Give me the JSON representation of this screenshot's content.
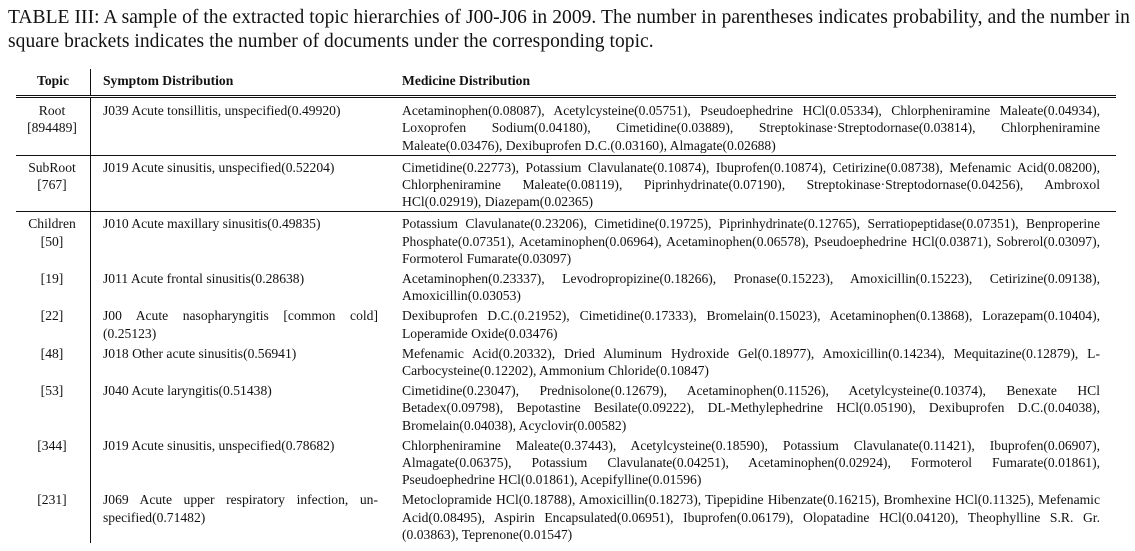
{
  "caption": "TABLE III: A sample of the extracted topic hierarchies of J00-J06 in 2009. The number in parentheses indicates probability, and the number in square brackets indicates the number of documents under the corresponding topic.",
  "headers": {
    "topic": "Topic",
    "symptom": "Symptom Distribution",
    "medicine": "Medicine Distribution"
  },
  "rows": [
    {
      "topic_label": "Root",
      "topic_count": "[894489]",
      "symptom": "J039 Acute tonsillitis, unspecified(0.49920)",
      "medicine": "Acetaminophen(0.08087), Acetylcysteine(0.05751), Pseudoephedrine HCl(0.05334), Chlorpheniramine Maleate(0.04934), Loxoprofen Sodium(0.04180), Cimetidine(0.03889), Streptokinase·Streptodornase(0.03814), Chlorpheniramine Maleate(0.03476), Dexibuprofen D.C.(0.03160), Almagate(0.02688)"
    },
    {
      "topic_label": "SubRoot",
      "topic_count": "[767]",
      "symptom": "J019 Acute sinusitis, unspecified(0.52204)",
      "medicine": "Cimetidine(0.22773), Potassium Clavulanate(0.10874), Ibuprofen(0.10874), Cetirizine(0.08738), Mefenamic Acid(0.08200), Chlorpheniramine Maleate(0.08119), Piprinhydrinate(0.07190), Streptoki­nase·Streptodornase(0.04256), Ambroxol HCl(0.02919), Diazepam(0.02365)"
    },
    {
      "topic_label": "Children",
      "topic_count": "[50]",
      "symptom": "J010 Acute maxillary sinusitis(0.49835)",
      "medicine": "Potassium Clavulanate(0.23206), Cimetidine(0.19725), Piprinhydrinate(0.12765), Serratiopeptidase(0.07351), Benproperine Phosphate(0.07351), Acetaminophen(0.06964), Acetaminophen(0.06578), Pseudoephedrine HCl(0.03871), Sobrerol(0.03097), Formoterol Fumarate(0.03097)"
    },
    {
      "topic_label": "",
      "topic_count": "[19]",
      "symptom": "J011 Acute frontal sinusitis(0.28638)",
      "medicine": "Acetaminophen(0.23337), Levodropropizine(0.18266), Pronase(0.15223), Amoxicillin(0.15223), Ceti­rizine(0.09138), Amoxicillin(0.03053)"
    },
    {
      "topic_label": "",
      "topic_count": "[22]",
      "symptom": "J00 Acute nasopharyngitis [common cold](0.25123)",
      "medicine": "Dexibuprofen D.C.(0.21952), Cimetidine(0.17333), Bromelain(0.15023), Acetaminophen(0.13868), Lorazepam(0.10404), Loperamide Oxide(0.03476)"
    },
    {
      "topic_label": "",
      "topic_count": "[48]",
      "symptom": "J018 Other acute sinusitis(0.56941)",
      "medicine": "Mefenamic Acid(0.20332), Dried Aluminum Hydroxide Gel(0.18977), Amoxicillin(0.14234), Mequitazine(0.12879), L-Carbocysteine(0.12202), Ammonium Chloride(0.10847)"
    },
    {
      "topic_label": "",
      "topic_count": "[53]",
      "symptom": "J040 Acute laryngitis(0.51438)",
      "medicine": "Cimetidine(0.23047), Prednisolone(0.12679), Acetaminophen(0.11526), Acetylcysteine(0.10374), Benexate HCl Betadex(0.09798), Bepotastine Besilate(0.09222), DL-Methylephedrine HCl(0.05190), Dexibuprofen D.C.(0.04038), Bromelain(0.04038), Acyclovir(0.00582)"
    },
    {
      "topic_label": "",
      "topic_count": "[344]",
      "symptom": "J019 Acute sinusitis, unspecified(0.78682)",
      "medicine": "Chlorpheniramine Maleate(0.37443), Acetylcysteine(0.18590), Potassium Clavulanate(0.11421), Ibupro­fen(0.06907), Almagate(0.06375), Potassium Clavulanate(0.04251), Acetaminophen(0.02924), Formoterol Fumarate(0.01861), Pseudoephedrine HCl(0.01861), Acepifylline(0.01596)"
    },
    {
      "topic_label": "",
      "topic_count": "[231]",
      "symptom": "J069 Acute upper respiratory infection, un­specified(0.71482)",
      "medicine": "Metoclopramide HCl(0.18788), Amoxicillin(0.18273), Tipepidine Hibenzate(0.16215), Bromhexine HCl(0.11325), Mefenamic Acid(0.08495), Aspirin Encapsulated(0.06951), Ibuprofen(0.06179), Olopatadine HCl(0.04120), Theo­phylline S.R. Gr.(0.03863), Teprenone(0.01547)"
    }
  ]
}
